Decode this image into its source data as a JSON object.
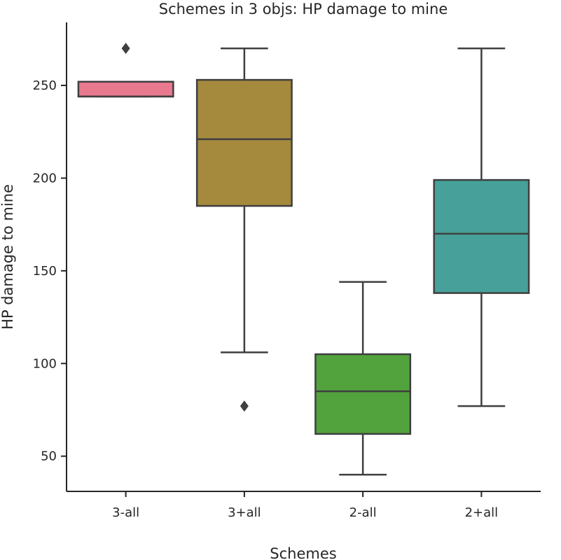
{
  "chart_data": {
    "type": "box",
    "title": "Schemes in 3 objs: HP damage to mine",
    "xlabel": "Schemes",
    "ylabel": "HP damage to mine",
    "ylim": [
      31,
      284
    ],
    "yticks": [
      50,
      100,
      150,
      200,
      250
    ],
    "grid": false,
    "legend": "none",
    "categories": [
      "3-all",
      "3+all",
      "2-all",
      "2+all"
    ],
    "boxes": [
      {
        "category": "3-all",
        "color": "#e8798f",
        "whisker_low": 244,
        "q1": 244,
        "median": 244,
        "q3": 252,
        "whisker_high": 252,
        "outliers": [
          270
        ]
      },
      {
        "category": "3+all",
        "color": "#a58a3e",
        "whisker_low": 106,
        "q1": 185,
        "median": 221,
        "q3": 253,
        "whisker_high": 270,
        "outliers": [
          77
        ]
      },
      {
        "category": "2-all",
        "color": "#52a33d",
        "whisker_low": 40,
        "q1": 62,
        "median": 85,
        "q3": 105,
        "whisker_high": 144,
        "outliers": []
      },
      {
        "category": "2+all",
        "color": "#47a19a",
        "whisker_low": 77,
        "q1": 138,
        "median": 170,
        "q3": 199,
        "whisker_high": 270,
        "outliers": []
      }
    ]
  }
}
